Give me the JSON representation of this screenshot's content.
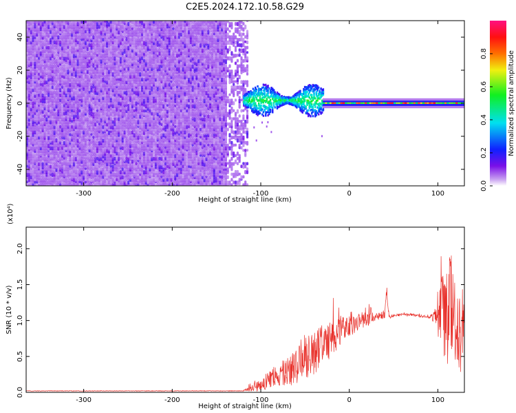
{
  "title": "C2E5.2024.172.10.58.G29",
  "colors": {
    "snr_line": "#e8302a",
    "spectrogram_low": "#dcc8f4",
    "spectrogram_mid": "#7a12e8",
    "spectrogram_peak": "#ff1010"
  },
  "chart_data": [
    {
      "type": "heatmap",
      "title": "C2E5.2024.172.10.58.G29",
      "xlabel": "Height of straight line (km)",
      "ylabel": "Frequency (Hz)",
      "xlim": [
        -365,
        130
      ],
      "ylim": [
        -50,
        50
      ],
      "xticks": [
        -300,
        -200,
        -100,
        0,
        100
      ],
      "yticks": [
        -40,
        -20,
        0,
        20,
        40
      ],
      "grid": false,
      "colorbar": {
        "label": "Normalized spectral amplitude",
        "range": [
          0.0,
          1.0
        ],
        "ticks": [
          0.0,
          0.2,
          0.4,
          0.6,
          0.8
        ],
        "tick_labels": [
          "0.0",
          "0.2",
          "0.4",
          "0.6",
          "0.8"
        ],
        "colormap": "rainbow (magenta-blue-cyan-green-yellow-red)"
      },
      "regions": [
        {
          "name": "noise",
          "x_range": [
            -365,
            -115
          ],
          "freq_range": [
            -50,
            50
          ],
          "amplitude": 0.1
        },
        {
          "name": "broadening",
          "x_range": [
            -120,
            -30
          ],
          "freq_range": [
            -8,
            10
          ],
          "amplitude": 0.35
        },
        {
          "name": "carrier",
          "x_range": [
            -30,
            130
          ],
          "freq_range": [
            -2,
            2
          ],
          "amplitude": 0.9
        }
      ]
    },
    {
      "type": "line",
      "xlabel": "Height of straight line (km)",
      "ylabel": "SNR (10 * v/v)",
      "y_scale_label": "(x10⁴)",
      "xlim": [
        -365,
        130
      ],
      "ylim": [
        0.0,
        2.3
      ],
      "xticks": [
        -300,
        -200,
        -100,
        0,
        100
      ],
      "yticks": [
        0.0,
        0.5,
        1.0,
        1.5,
        2.0
      ],
      "ytick_labels": [
        "0.0",
        "0.5",
        "1.0",
        "1.5",
        "2.0"
      ],
      "grid": false,
      "series": [
        {
          "x": [
            -365,
            -300,
            -200,
            -120,
            -110,
            -100,
            -90,
            -80,
            -70,
            -60,
            -50,
            -40,
            -30,
            -20,
            -10,
            0,
            10,
            20,
            30,
            40,
            42,
            45,
            50,
            60,
            70,
            80,
            90,
            98,
            100,
            105,
            110,
            115,
            120,
            125,
            130
          ],
          "y": [
            0.02,
            0.02,
            0.02,
            0.02,
            0.06,
            0.1,
            0.18,
            0.24,
            0.3,
            0.35,
            0.45,
            0.55,
            0.65,
            0.75,
            0.85,
            0.92,
            0.98,
            1.02,
            1.05,
            1.08,
            1.4,
            1.05,
            1.07,
            1.08,
            1.08,
            1.06,
            1.05,
            1.05,
            1.1,
            1.15,
            1.0,
            1.2,
            0.9,
            0.8,
            0.9
          ],
          "noise_amplitude": [
            0.004,
            0.004,
            0.004,
            0.004,
            0.05,
            0.08,
            0.12,
            0.15,
            0.2,
            0.25,
            0.3,
            0.3,
            0.3,
            0.25,
            0.2,
            0.15,
            0.12,
            0.1,
            0.06,
            0.05,
            0.05,
            0.03,
            0.02,
            0.02,
            0.02,
            0.02,
            0.02,
            0.1,
            0.4,
            0.5,
            0.7,
            0.8,
            0.7,
            0.6,
            0.6
          ]
        }
      ]
    }
  ]
}
